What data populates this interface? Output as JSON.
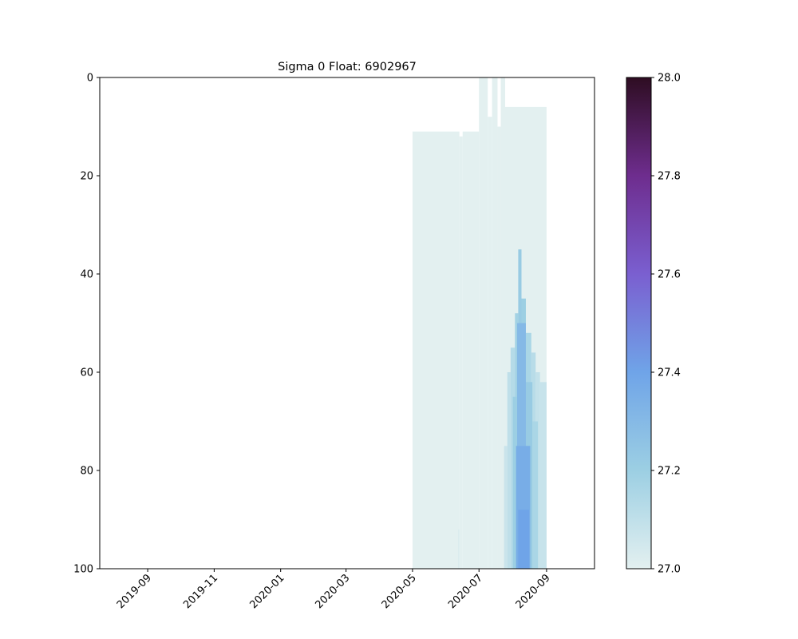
{
  "chart_data": {
    "type": "heatmap",
    "title": "Sigma 0 Float: 6902967",
    "xlabel": "",
    "ylabel": "",
    "x_axis": {
      "type": "date",
      "range": [
        "2019-07-19",
        "2020-10-15"
      ],
      "ticks": [
        "2019-09",
        "2019-11",
        "2020-01",
        "2020-03",
        "2020-05",
        "2020-07",
        "2020-09"
      ]
    },
    "y_axis": {
      "range": [
        0,
        100
      ],
      "inverted": true,
      "ticks": [
        "0",
        "20",
        "40",
        "60",
        "80",
        "100"
      ]
    },
    "colorbar": {
      "range": [
        27.0,
        28.0
      ],
      "ticks": [
        "27.0",
        "27.2",
        "27.4",
        "27.6",
        "27.8",
        "28.0"
      ],
      "colors": [
        "#e3f0f0",
        "#9ccfe3",
        "#6fa4e8",
        "#7a5fd0",
        "#6e2d8e",
        "#2e0d22"
      ]
    },
    "grid": false,
    "cells": [
      {
        "x0": "2020-05-01",
        "x1": "2020-06-13",
        "d0": 11,
        "d1": 100,
        "v": 27.0
      },
      {
        "x0": "2020-06-13",
        "x1": "2020-06-16",
        "d0": 12,
        "d1": 100,
        "v": 27.0
      },
      {
        "x0": "2020-06-16",
        "x1": "2020-07-01",
        "d0": 11,
        "d1": 100,
        "v": 27.0
      },
      {
        "x0": "2020-07-01",
        "x1": "2020-07-09",
        "d0": 0,
        "d1": 100,
        "v": 27.0
      },
      {
        "x0": "2020-07-09",
        "x1": "2020-07-13",
        "d0": 8,
        "d1": 100,
        "v": 27.0
      },
      {
        "x0": "2020-07-13",
        "x1": "2020-07-18",
        "d0": 0,
        "d1": 100,
        "v": 27.0
      },
      {
        "x0": "2020-07-18",
        "x1": "2020-07-21",
        "d0": 10,
        "d1": 100,
        "v": 27.0
      },
      {
        "x0": "2020-07-21",
        "x1": "2020-07-25",
        "d0": 0,
        "d1": 100,
        "v": 27.0
      },
      {
        "x0": "2020-07-25",
        "x1": "2020-09-01",
        "d0": 6,
        "d1": 100,
        "v": 27.0
      },
      {
        "x0": "2020-06-12",
        "x1": "2020-06-13",
        "d0": 92,
        "d1": 100,
        "v": 27.03
      },
      {
        "x0": "2020-07-24",
        "x1": "2020-07-27",
        "d0": 75,
        "d1": 100,
        "v": 27.07
      },
      {
        "x0": "2020-07-27",
        "x1": "2020-07-30",
        "d0": 60,
        "d1": 100,
        "v": 27.1
      },
      {
        "x0": "2020-07-30",
        "x1": "2020-08-03",
        "d0": 55,
        "d1": 100,
        "v": 27.13
      },
      {
        "x0": "2020-08-03",
        "x1": "2020-08-06",
        "d0": 48,
        "d1": 100,
        "v": 27.18
      },
      {
        "x0": "2020-08-06",
        "x1": "2020-08-09",
        "d0": 35,
        "d1": 100,
        "v": 27.22
      },
      {
        "x0": "2020-08-09",
        "x1": "2020-08-13",
        "d0": 45,
        "d1": 100,
        "v": 27.2
      },
      {
        "x0": "2020-08-13",
        "x1": "2020-08-18",
        "d0": 52,
        "d1": 100,
        "v": 27.16
      },
      {
        "x0": "2020-08-18",
        "x1": "2020-08-22",
        "d0": 56,
        "d1": 100,
        "v": 27.12
      },
      {
        "x0": "2020-08-22",
        "x1": "2020-08-26",
        "d0": 60,
        "d1": 100,
        "v": 27.09
      },
      {
        "x0": "2020-08-26",
        "x1": "2020-09-01",
        "d0": 62,
        "d1": 100,
        "v": 27.08
      },
      {
        "x0": "2020-08-01",
        "x1": "2020-08-05",
        "d0": 65,
        "d1": 100,
        "v": 27.2
      },
      {
        "x0": "2020-08-05",
        "x1": "2020-08-13",
        "d0": 50,
        "d1": 100,
        "v": 27.3
      },
      {
        "x0": "2020-08-13",
        "x1": "2020-08-19",
        "d0": 62,
        "d1": 100,
        "v": 27.22
      },
      {
        "x0": "2020-08-19",
        "x1": "2020-08-24",
        "d0": 70,
        "d1": 100,
        "v": 27.16
      },
      {
        "x0": "2020-08-04",
        "x1": "2020-08-17",
        "d0": 75,
        "d1": 100,
        "v": 27.36
      },
      {
        "x0": "2020-08-06",
        "x1": "2020-08-16",
        "d0": 88,
        "d1": 100,
        "v": 27.4
      }
    ]
  }
}
